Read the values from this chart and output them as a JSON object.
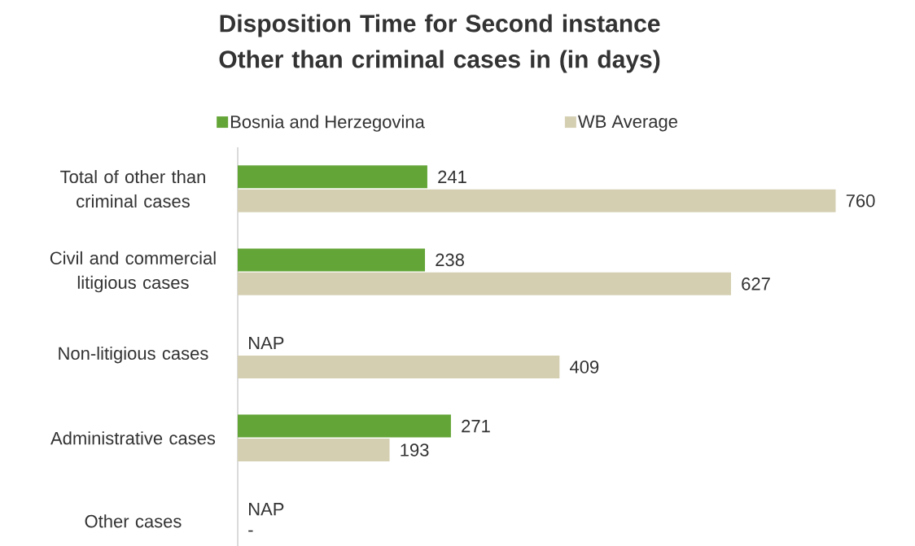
{
  "chart_data": {
    "type": "bar",
    "orientation": "horizontal",
    "title": "Disposition Time for Second instance Other than criminal cases in  (in days)",
    "categories": [
      "Total of other than criminal cases",
      "Civil and commercial litigious cases",
      "Non-litigious cases",
      "Administrative cases",
      "Other cases"
    ],
    "series": [
      {
        "name": "Bosnia and Herzegovina",
        "color": "#64a537",
        "values": [
          241,
          238,
          null,
          271,
          null
        ],
        "value_labels": [
          "241",
          "238",
          "NAP",
          "271",
          "NAP"
        ]
      },
      {
        "name": "WB Average",
        "color": "#d5cfb2",
        "values": [
          760,
          627,
          409,
          193,
          null
        ],
        "value_labels": [
          "760",
          "627",
          "409",
          "193",
          "-"
        ]
      }
    ],
    "legend": "top"
  }
}
